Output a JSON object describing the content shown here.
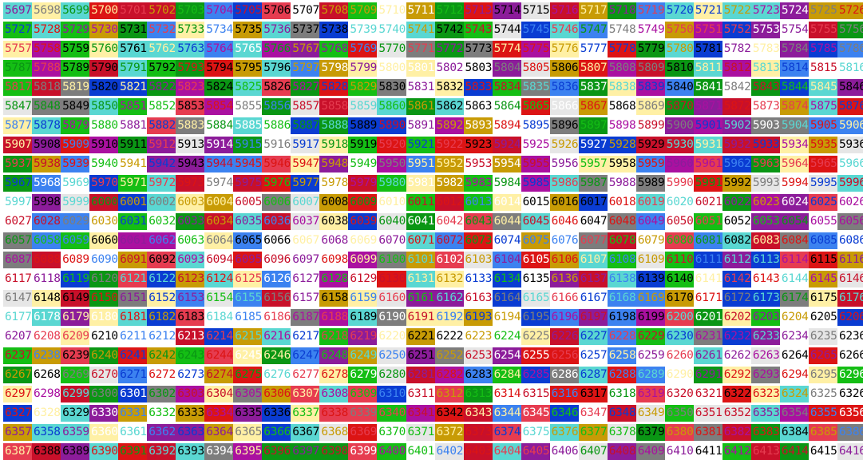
{
  "grid": {
    "first_number": 5697,
    "last_number": 6416,
    "columns": 30,
    "rows": 24,
    "order": "row-major"
  },
  "palette": {
    "red": "#dc1414",
    "crimson": "#c8102a",
    "pink": "#e63c50",
    "magenta": "#aa10a0",
    "purple": "#8c1c9a",
    "blue": "#0a3cd2",
    "sky": "#3c82f0",
    "cyan": "#5ad7d2",
    "green": "#14be14",
    "darkgreen": "#0a9614",
    "gold": "#c89b05",
    "cream": "#fff0a5",
    "gray": "#7d7d7d",
    "lightgray": "#e6e6e6",
    "white": "#ffffff",
    "black": "#000000"
  },
  "page": {
    "background": "#ffffff"
  }
}
